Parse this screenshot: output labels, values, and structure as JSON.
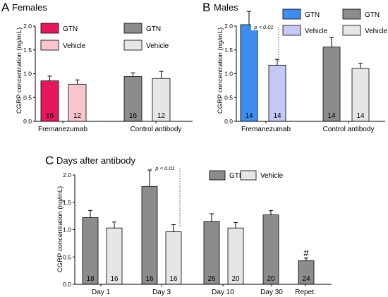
{
  "chart_data": [
    {
      "panel": "A",
      "title": "Females",
      "type": "bar",
      "ylabel": "CGRP concentration (ng/mL)",
      "ylim": [
        0,
        2.0
      ],
      "yticks": [
        "0.0",
        "0.5",
        "1.0",
        "1.5",
        "2.0"
      ],
      "categories": [
        "Fremanezumab",
        "Control antibody"
      ],
      "series": [
        {
          "name": "GTN",
          "group": "Fremanezumab",
          "value": 0.85,
          "err": 0.1,
          "n": "16",
          "color": "#e8175d"
        },
        {
          "name": "Vehicle",
          "group": "Fremanezumab",
          "value": 0.78,
          "err": 0.09,
          "n": "12",
          "color": "#f9c6cf"
        },
        {
          "name": "GTN",
          "group": "Control antibody",
          "value": 0.94,
          "err": 0.08,
          "n": "16",
          "color": "#8c8c8c"
        },
        {
          "name": "Vehicle",
          "group": "Control antibody",
          "value": 0.9,
          "err": 0.15,
          "n": "12",
          "color": "#e6e6e6"
        }
      ],
      "legend": [
        {
          "label": "GTN",
          "color": "#e8175d"
        },
        {
          "label": "Vehicle",
          "color": "#f9c6cf"
        },
        {
          "label": "GTN",
          "color": "#8c8c8c"
        },
        {
          "label": "Vehicle",
          "color": "#e6e6e6"
        }
      ]
    },
    {
      "panel": "B",
      "title": "Males",
      "type": "bar",
      "ylabel": "CGRP concentration (ng/mL)",
      "ylim": [
        0,
        2.0
      ],
      "yticks": [
        "0.0",
        "0.5",
        "1.0",
        "1.5",
        "2.0"
      ],
      "categories": [
        "Fremanezumab",
        "Control antibody"
      ],
      "series": [
        {
          "name": "GTN",
          "group": "Fremanezumab",
          "value": 2.03,
          "err": 0.28,
          "n": "14",
          "color": "#3d8ef0"
        },
        {
          "name": "Vehicle",
          "group": "Fremanezumab",
          "value": 1.18,
          "err": 0.12,
          "n": "14",
          "color": "#c6c9f5"
        },
        {
          "name": "GTN",
          "group": "Control antibody",
          "value": 1.56,
          "err": 0.2,
          "n": "14",
          "color": "#8c8c8c"
        },
        {
          "name": "Vehicle",
          "group": "Control antibody",
          "value": 1.11,
          "err": 0.11,
          "n": "14",
          "color": "#e6e6e6"
        }
      ],
      "legend": [
        {
          "label": "GTN",
          "color": "#3d8ef0"
        },
        {
          "label": "Vehicle",
          "color": "#c6c9f5"
        },
        {
          "label": "GTN",
          "color": "#8c8c8c"
        },
        {
          "label": "Vehicle",
          "color": "#e6e6e6"
        }
      ],
      "annotation": "p < 0.01"
    },
    {
      "panel": "C",
      "title": "Days after antibody",
      "type": "bar",
      "ylabel": "CGRP concentration (ng/mL)",
      "ylim": [
        0,
        2.0
      ],
      "yticks": [
        "0.0",
        "0.5",
        "1.0",
        "1.5",
        "2.0"
      ],
      "categories": [
        "Day 1",
        "Day 3",
        "Day 10",
        "Day 30",
        "Repet."
      ],
      "series": [
        {
          "name": "GTN",
          "group": "Day 1",
          "value": 1.22,
          "err": 0.13,
          "n": "18",
          "color": "#8c8c8c"
        },
        {
          "name": "Vehicle",
          "group": "Day 1",
          "value": 1.03,
          "err": 0.11,
          "n": "16",
          "color": "#e6e6e6"
        },
        {
          "name": "GTN",
          "group": "Day 3",
          "value": 1.79,
          "err": 0.3,
          "n": "16",
          "color": "#8c8c8c"
        },
        {
          "name": "Vehicle",
          "group": "Day 3",
          "value": 0.96,
          "err": 0.13,
          "n": "16",
          "color": "#e6e6e6"
        },
        {
          "name": "GTN",
          "group": "Day 10",
          "value": 1.15,
          "err": 0.14,
          "n": "26",
          "color": "#8c8c8c"
        },
        {
          "name": "Vehicle",
          "group": "Day 10",
          "value": 1.03,
          "err": 0.1,
          "n": "20",
          "color": "#e6e6e6"
        },
        {
          "name": "GTN",
          "group": "Day 30",
          "value": 1.27,
          "err": 0.08,
          "n": "20",
          "color": "#8c8c8c"
        },
        {
          "name": "GTN",
          "group": "Repet.",
          "value": 0.43,
          "err": 0.05,
          "n": "24",
          "color": "#8c8c8c"
        }
      ],
      "legend": [
        {
          "label": "GTN",
          "color": "#8c8c8c"
        },
        {
          "label": "Vehicle",
          "color": "#e6e6e6"
        }
      ],
      "annotation": "p < 0.01",
      "marker": "#"
    }
  ]
}
